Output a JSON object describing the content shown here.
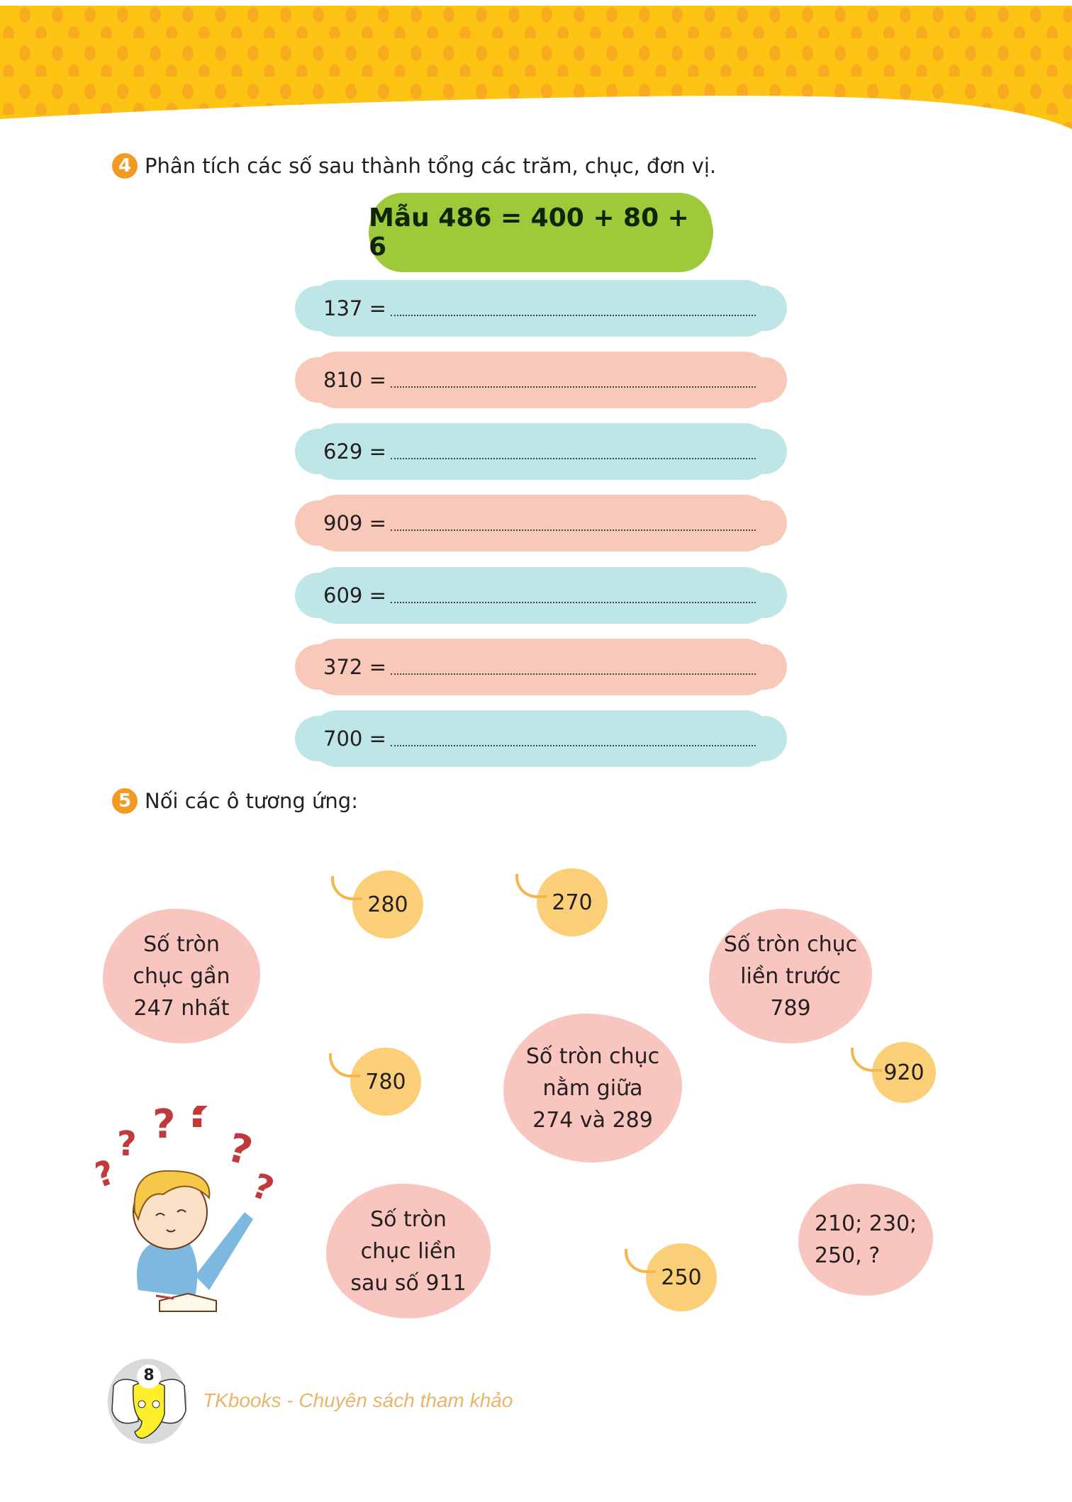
{
  "colors": {
    "header": "#fdc414",
    "header_dots": "#f9ab1f",
    "badge": "#f39a22",
    "sample_cloud": "#9dc93b",
    "blue_cloud": "#bfe6e6",
    "pink_cloud": "#f8c9b8",
    "number_circle": "#fbcf78",
    "footer_text": "#e9b46a"
  },
  "exercise4": {
    "number": "4",
    "title": "Phân tích các số sau thành tổng các trăm, chục, đơn vị.",
    "sample": "Mẫu 486 = 400 + 80 + 6",
    "rows": [
      {
        "label": "137 =",
        "color": "blue"
      },
      {
        "label": "810 =",
        "color": "pink"
      },
      {
        "label": "629 =",
        "color": "blue"
      },
      {
        "label": "909 =",
        "color": "pink"
      },
      {
        "label": "609 =",
        "color": "blue"
      },
      {
        "label": "372 =",
        "color": "pink"
      },
      {
        "label": "700 =",
        "color": "blue"
      }
    ]
  },
  "exercise5": {
    "number": "5",
    "title": "Nối các ô tương ứng:",
    "numbers": [
      "280",
      "270",
      "780",
      "920",
      "250"
    ],
    "descriptions": [
      {
        "lines": [
          "Số tròn",
          "chục gần",
          "247 nhất"
        ]
      },
      {
        "lines": [
          "Số tròn chục",
          "liền trước",
          "789"
        ]
      },
      {
        "lines": [
          "Số tròn chục",
          "nằm giữa",
          "274 và 289"
        ]
      },
      {
        "lines": [
          "Số tròn",
          "chục liền",
          "sau số 911"
        ]
      },
      {
        "lines": [
          "210; 230;",
          "250, ?"
        ]
      }
    ]
  },
  "footer": {
    "page_number": "8",
    "brand": "TKbooks - Chuyên sách tham khảo"
  }
}
